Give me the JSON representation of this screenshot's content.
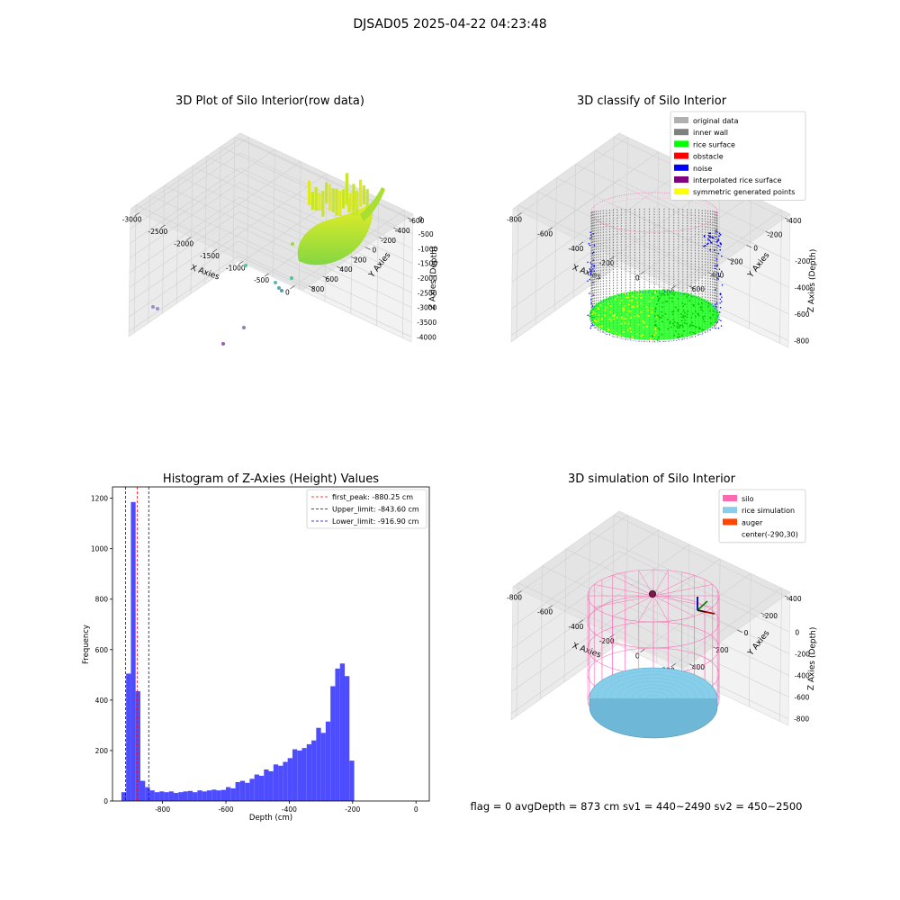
{
  "figure_title": "DJSAD05 2025-04-22 04:23:48",
  "colors": {
    "hist_bar": "#4d4dff",
    "first_peak_line": "#ff0000",
    "limit_line": "#0000cc",
    "original_data": "#b0b0b0",
    "inner_wall": "#808080",
    "rice_surface": "#00ff00",
    "obstacle": "#ff0000",
    "noise": "#0000ff",
    "interpolated_rice_surface": "#800080",
    "symmetric_generated_points": "#ffff00",
    "silo": "#ff69b4",
    "rice_simulation": "#87ceeb",
    "auger": "#ff4500"
  },
  "chart_data": [
    {
      "type": "scatter",
      "title": "3D Plot of Silo Interior(row data)",
      "xlabel": "X Axies",
      "ylabel": "Y Axies",
      "zlabel": "Z Axies (Depth)",
      "x_ticks": [
        "-3000",
        "-2500",
        "-2000",
        "-1500",
        "-1000",
        "-500",
        "0"
      ],
      "y_ticks": [
        "-600",
        "-400",
        "-200",
        "0",
        "200",
        "400",
        "600",
        "800"
      ],
      "z_ticks": [
        "0",
        "-500",
        "-1000",
        "-1500",
        "-2000",
        "-2500",
        "-3000",
        "-3500",
        "-4000"
      ]
    },
    {
      "type": "scatter",
      "title": "3D classify of Silo Interior",
      "xlabel": "X Axies",
      "ylabel": "Y Axies",
      "zlabel": "Z Axies (Depth)",
      "x_ticks": [
        "-800",
        "-600",
        "-400",
        "-200",
        "0",
        "200"
      ],
      "y_ticks": [
        "-400",
        "-200",
        "0",
        "200",
        "400",
        "600"
      ],
      "z_ticks": [
        "-200",
        "-400",
        "-600",
        "-800"
      ],
      "legend": [
        "original data",
        "inner wall",
        "rice surface",
        "obstacle",
        "noise",
        "interpolated rice surface",
        "symmetric generated points"
      ],
      "legend_position": "top-right"
    },
    {
      "type": "bar",
      "title": "Histogram of Z-Axies (Height) Values",
      "xlabel": "Depth (cm)",
      "ylabel": "Frequency",
      "xlim": [
        -958,
        42
      ],
      "ylim": [
        0,
        1245
      ],
      "x_ticks": [
        -800,
        -600,
        -400,
        -200,
        0
      ],
      "y_ticks": [
        0,
        200,
        400,
        600,
        800,
        1000,
        1200
      ],
      "bin_start": -930,
      "bin_width": 15,
      "values": [
        35,
        505,
        1185,
        435,
        80,
        55,
        42,
        35,
        38,
        35,
        38,
        32,
        35,
        38,
        40,
        35,
        42,
        38,
        42,
        45,
        42,
        44,
        55,
        50,
        75,
        80,
        72,
        88,
        105,
        100,
        125,
        118,
        145,
        140,
        155,
        170,
        205,
        200,
        210,
        225,
        240,
        290,
        270,
        315,
        455,
        525,
        545,
        495,
        160
      ],
      "lines": [
        {
          "label": "first_peak: -880.25 cm",
          "x": -880.25,
          "color": "red"
        },
        {
          "label": "Upper_limit: -843.60 cm",
          "x": -843.6,
          "color": "blue"
        },
        {
          "label": "Lower_limit: -916.90 cm",
          "x": -916.9,
          "color": "blue"
        }
      ],
      "legend_position": "top-right"
    },
    {
      "type": "scatter",
      "title": "3D simulation of Silo Interior",
      "xlabel": "X Axies",
      "ylabel": "Y Axies",
      "zlabel": "Z Axies (Depth)",
      "x_ticks": [
        "-800",
        "-600",
        "-400",
        "-200",
        "0",
        "200"
      ],
      "y_ticks": [
        "-400",
        "-200",
        "0",
        "200",
        "400"
      ],
      "z_ticks": [
        "0",
        "-200",
        "-400",
        "-600",
        "-800"
      ],
      "legend": [
        "silo",
        "rice simulation",
        "auger",
        "center(-290,30)"
      ],
      "legend_position": "top-right"
    }
  ],
  "status_line": "flag = 0     avgDepth = 873 cm  sv1 = 440~2490  sv2 = 450~2500"
}
